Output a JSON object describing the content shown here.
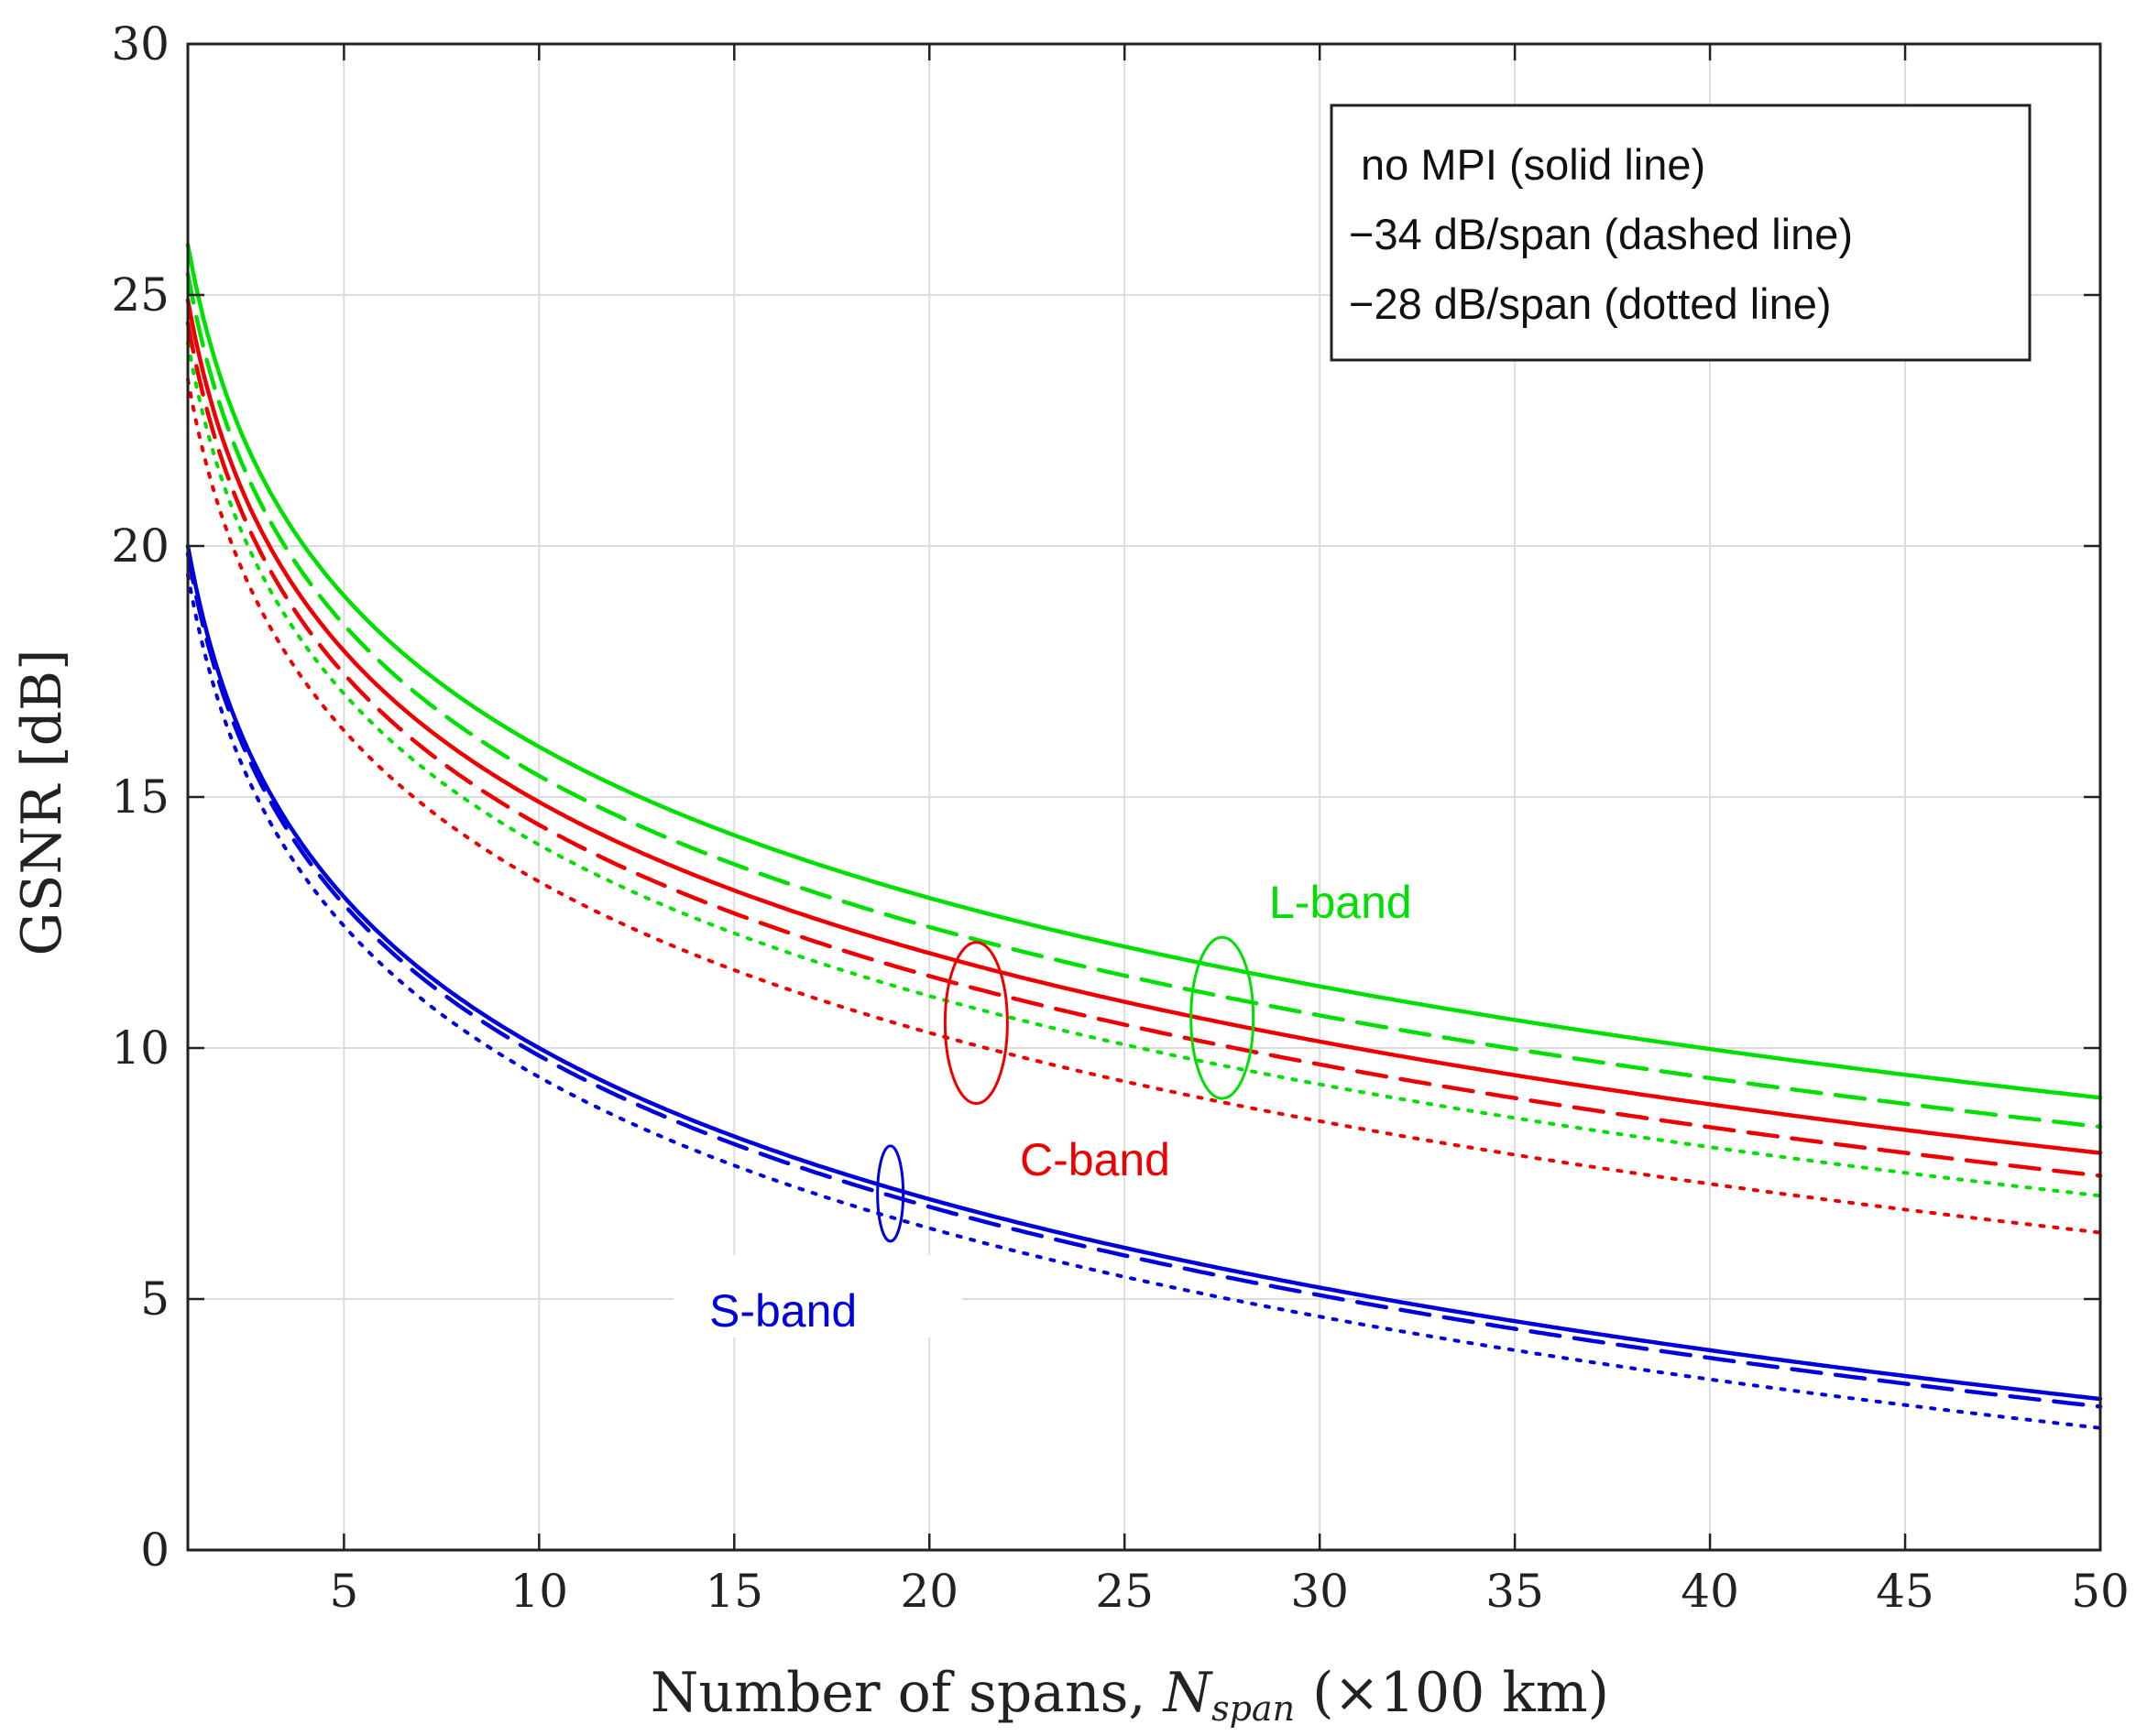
{
  "chart_data": {
    "type": "line",
    "xlabel_prefix": "Number of spans, ",
    "xlabel_symbol": "N",
    "xlabel_subscript": "span",
    "xlabel_suffix": " (×100 km)",
    "ylabel": "GSNR [dB]",
    "xlim": [
      1,
      50
    ],
    "ylim": [
      0,
      30
    ],
    "xticks": [
      5,
      10,
      15,
      20,
      25,
      30,
      35,
      40,
      45,
      50
    ],
    "yticks": [
      0,
      5,
      10,
      15,
      20,
      25,
      30
    ],
    "grid": true,
    "legend": {
      "position": "top-right",
      "entries": [
        "no MPI (solid line)",
        "−34 dB/span (dashed line)",
        "−28 dB/span (dotted line)"
      ]
    },
    "band_labels": [
      {
        "text": "L-band",
        "color": "#00e000"
      },
      {
        "text": "C-band",
        "color": "#ee0000"
      },
      {
        "text": "S-band",
        "color": "#0000dd"
      }
    ],
    "series": [
      {
        "name": "L-band no MPI",
        "band": "L",
        "style": "solid",
        "color": "#00e000",
        "gsnr_at_1": 26.0,
        "mpi_db": null
      },
      {
        "name": "L-band -34 dB/span",
        "band": "L",
        "style": "dashed",
        "color": "#00e000",
        "gsnr_at_1": 26.0,
        "mpi_db": -34
      },
      {
        "name": "L-band -28 dB/span",
        "band": "L",
        "style": "dotted",
        "color": "#00e000",
        "gsnr_at_1": 26.0,
        "mpi_db": -28
      },
      {
        "name": "C-band no MPI",
        "band": "C",
        "style": "solid",
        "color": "#ee0000",
        "gsnr_at_1": 24.9,
        "mpi_db": null
      },
      {
        "name": "C-band -34 dB/span",
        "band": "C",
        "style": "dashed",
        "color": "#ee0000",
        "gsnr_at_1": 24.9,
        "mpi_db": -34
      },
      {
        "name": "C-band -28 dB/span",
        "band": "C",
        "style": "dotted",
        "color": "#ee0000",
        "gsnr_at_1": 24.9,
        "mpi_db": -28
      },
      {
        "name": "S-band no MPI",
        "band": "S",
        "style": "solid",
        "color": "#0000dd",
        "gsnr_at_1": 20.0,
        "mpi_db": null
      },
      {
        "name": "S-band -34 dB/span",
        "band": "S",
        "style": "dashed",
        "color": "#0000dd",
        "gsnr_at_1": 20.0,
        "mpi_db": -34
      },
      {
        "name": "S-band -28 dB/span",
        "band": "S",
        "style": "dotted",
        "color": "#0000dd",
        "gsnr_at_1": 20.0,
        "mpi_db": -28
      }
    ],
    "group_markers": [
      {
        "band": "L",
        "x": 27.5,
        "y": 10.6,
        "color": "#00e000"
      },
      {
        "band": "C",
        "x": 21.2,
        "y": 10.5,
        "color": "#ee0000"
      },
      {
        "band": "S",
        "x": 19.0,
        "y": 7.1,
        "color": "#0000dd"
      }
    ]
  }
}
